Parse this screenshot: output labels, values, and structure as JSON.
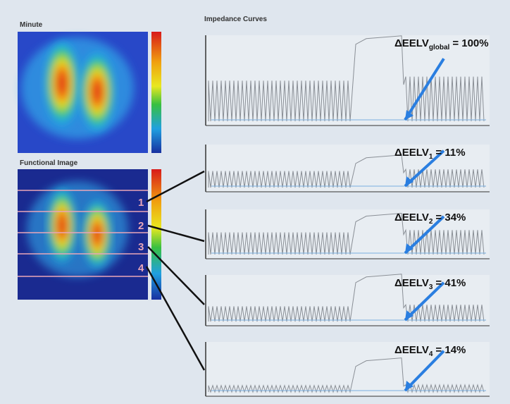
{
  "left_panels": [
    {
      "title": "Minute"
    },
    {
      "title": "Functional Image"
    }
  ],
  "regions": [
    "1",
    "2",
    "3",
    "4"
  ],
  "curves": {
    "title": "Impedance Curves",
    "panels": [
      {
        "annotation": {
          "prefix": "ΔEELV",
          "subscript": "global",
          "suffix": "= 100%"
        }
      },
      {
        "annotation": {
          "prefix": "ΔEELV",
          "subscript": "1",
          "suffix": "= 11%"
        }
      },
      {
        "annotation": {
          "prefix": "ΔEELV",
          "subscript": "2",
          "suffix": "= 34%"
        }
      },
      {
        "annotation": {
          "prefix": "ΔEELV",
          "subscript": "3",
          "suffix": "= 41%"
        }
      },
      {
        "annotation": {
          "prefix": "ΔEELV",
          "subscript": "4",
          "suffix": "= 14%"
        }
      }
    ]
  }
}
